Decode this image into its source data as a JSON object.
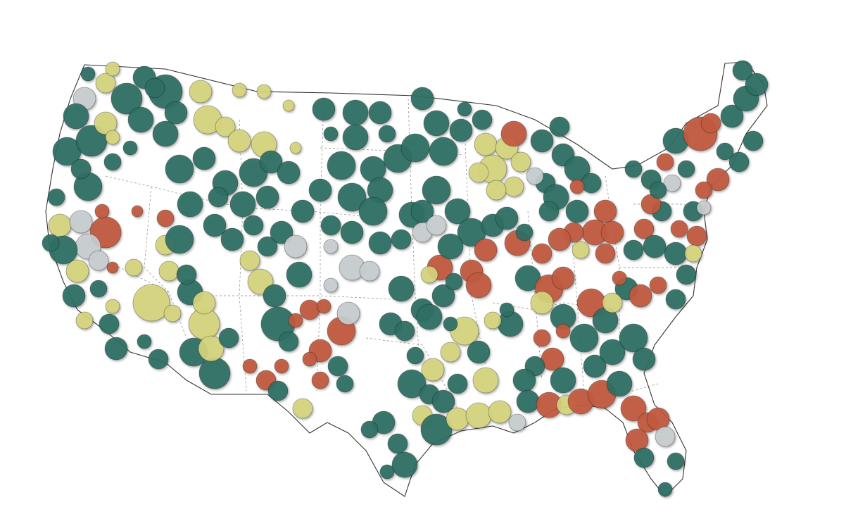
{
  "map": {
    "region": "contiguous-united-states",
    "legend": [],
    "colors": {
      "category-a": "#2e6e63",
      "category-b": "#c0593e",
      "category-c": "#d5d47d",
      "category-d": "#c7ccce"
    }
  }
}
